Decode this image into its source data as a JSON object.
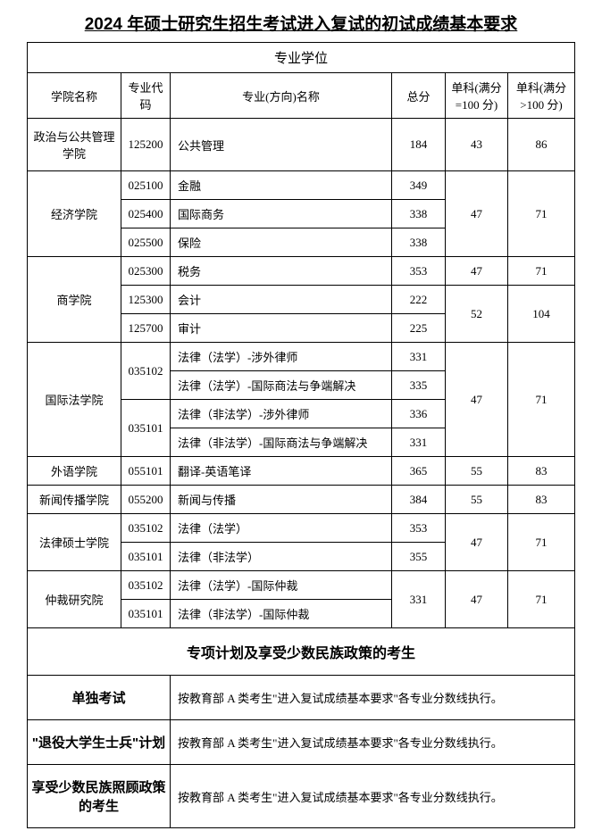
{
  "title": "2024 年硕士研究生招生考试进入复试的初试成绩基本要求",
  "section_title": "专业学位",
  "headers": {
    "school": "学院名称",
    "code": "专业代码",
    "major": "专业(方向)名称",
    "total": "总分",
    "sub1": "单科(满分=100 分)",
    "sub2": "单科(满分>100 分)"
  },
  "rows": {
    "r1": {
      "school": "政治与公共管理学院",
      "code": "125200",
      "major": "公共管理",
      "total": "184",
      "sub1": "43",
      "sub2": "86"
    },
    "r2": {
      "school": "经济学院",
      "code": "025100",
      "major": "金融",
      "total": "349",
      "sub1": "47",
      "sub2": "71"
    },
    "r3": {
      "code": "025400",
      "major": "国际商务",
      "total": "338"
    },
    "r4": {
      "code": "025500",
      "major": "保险",
      "total": "338"
    },
    "r5": {
      "school": "商学院",
      "code": "025300",
      "major": "税务",
      "total": "353",
      "sub1": "47",
      "sub2": "71"
    },
    "r6": {
      "code": "125300",
      "major": "会计",
      "total": "222",
      "sub1": "52",
      "sub2": "104"
    },
    "r7": {
      "code": "125700",
      "major": "审计",
      "total": "225"
    },
    "r8": {
      "school": "国际法学院",
      "code": "035102",
      "major": "法律（法学）-涉外律师",
      "total": "331",
      "sub1": "47",
      "sub2": "71"
    },
    "r9": {
      "major": "法律（法学）-国际商法与争端解决",
      "total": "335"
    },
    "r10": {
      "code": "035101",
      "major": "法律（非法学）-涉外律师",
      "total": "336"
    },
    "r11": {
      "major": "法律（非法学）-国际商法与争端解决",
      "total": "331"
    },
    "r12": {
      "school": "外语学院",
      "code": "055101",
      "major": "翻译-英语笔译",
      "total": "365",
      "sub1": "55",
      "sub2": "83"
    },
    "r13": {
      "school": "新闻传播学院",
      "code": "055200",
      "major": "新闻与传播",
      "total": "384",
      "sub1": "55",
      "sub2": "83"
    },
    "r14": {
      "school": "法律硕士学院",
      "code": "035102",
      "major": "法律（法学）",
      "total": "353",
      "sub1": "47",
      "sub2": "71"
    },
    "r15": {
      "code": "035101",
      "major": "法律（非法学）",
      "total": "355"
    },
    "r16": {
      "school": "仲裁研究院",
      "code": "035102",
      "major": "法律（法学）-国际仲裁",
      "total": "331",
      "sub1": "47",
      "sub2": "71"
    },
    "r17": {
      "code": "035101",
      "major": "法律（非法学）-国际仲裁"
    }
  },
  "special": {
    "header": "专项计划及享受少数民族政策的考生",
    "r1_label": "单独考试",
    "r1_text": "按教育部 A 类考生\"进入复试成绩基本要求\"各专业分数线执行。",
    "r2_label": "\"退役大学生士兵\"计划",
    "r2_text": "按教育部 A 类考生\"进入复试成绩基本要求\"各专业分数线执行。",
    "r3_label": "享受少数民族照顾政策的考生",
    "r3_text": "按教育部 A 类考生\"进入复试成绩基本要求\"各专业分数线执行。"
  }
}
